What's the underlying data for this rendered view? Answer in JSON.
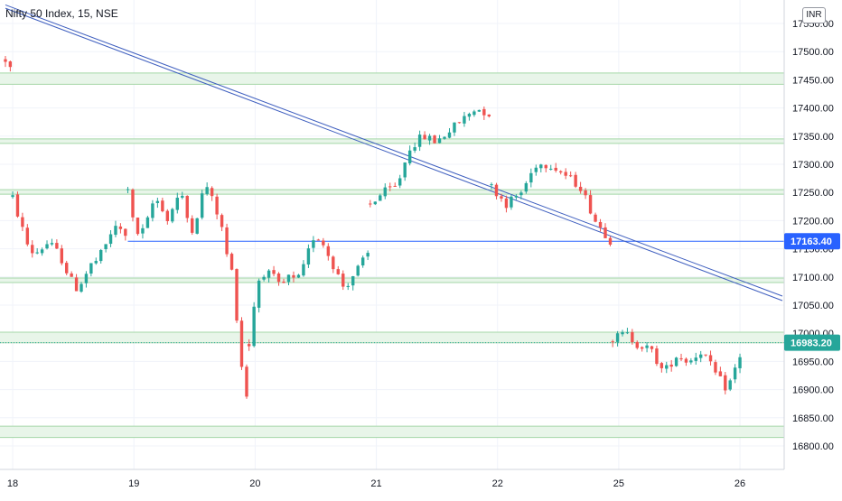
{
  "chart_data": {
    "type": "candlestick",
    "title": "Nifty 50 Index, 15, NSE",
    "currency": "INR",
    "y_ticks": [
      16800,
      16850,
      16900,
      16950,
      17000,
      17050,
      17100,
      17150,
      17200,
      17250,
      17300,
      17350,
      17400,
      17450,
      17500,
      17550
    ],
    "ylim": [
      16775,
      17575
    ],
    "x_labels": [
      {
        "label": "18",
        "day": 0
      },
      {
        "label": "19",
        "day": 1
      },
      {
        "label": "20",
        "day": 2
      },
      {
        "label": "21",
        "day": 3
      },
      {
        "label": "22",
        "day": 4
      },
      {
        "label": "25",
        "day": 5
      },
      {
        "label": "26",
        "day": 6
      }
    ],
    "xlim": [
      -0.06,
      6.35
    ],
    "grid": true,
    "support_resistance_zones": [
      [
        17442,
        17462
      ],
      [
        17337,
        17345
      ],
      [
        17247,
        17255
      ],
      [
        17090,
        17098
      ],
      [
        16983,
        17002
      ],
      [
        16815,
        16835
      ]
    ],
    "trendlines": [
      {
        "x": [
          -0.06,
          6.35
        ],
        "y": [
          17583,
          17066
        ]
      },
      {
        "x": [
          -0.06,
          6.35
        ],
        "y": [
          17577,
          17058
        ]
      }
    ],
    "horizontal_level": {
      "price": 17163.4,
      "from_day": 0.95,
      "label": "17163.40",
      "color": "#2962ff"
    },
    "last_price": {
      "price": 16983.2,
      "label": "16983.20",
      "color": "#26a69a"
    },
    "colors": {
      "up": "#26a69a",
      "down": "#ef5350",
      "zone_fill": "#e8f5e9",
      "zone_line": "#a5d6a7",
      "trendline": "#3f5fbf"
    },
    "segments": [
      {
        "start_day": -0.06,
        "end_day": -0.02,
        "path": [
          17485,
          17475,
          17470
        ]
      },
      {
        "start_day": 0.0,
        "end_day": 0.93,
        "path": [
          17240,
          17200,
          17160,
          17140,
          17150,
          17160,
          17150,
          17130,
          17100,
          17080,
          17095,
          17120,
          17130,
          17150,
          17180,
          17190,
          17170
        ]
      },
      {
        "start_day": 0.95,
        "end_day": 1.93,
        "path": [
          17260,
          17180,
          17175,
          17200,
          17240,
          17230,
          17200,
          17230,
          17250,
          17205,
          17180,
          17240,
          17260,
          17230,
          17200,
          17140,
          17100,
          16960,
          16890
        ]
      },
      {
        "start_day": 1.95,
        "end_day": 2.93,
        "path": [
          16980,
          17090,
          17110,
          17100,
          17080,
          17100,
          17090,
          17120,
          17170,
          17170,
          17140,
          17110,
          17080,
          17100,
          17120,
          17140
        ]
      },
      {
        "start_day": 2.95,
        "end_day": 3.93,
        "path": [
          17230,
          17250,
          17260,
          17330,
          17350,
          17340,
          17360,
          17380,
          17400,
          17390
        ]
      },
      {
        "start_day": 3.95,
        "end_day": 4.93,
        "path": [
          17260,
          17230,
          17250,
          17300,
          17300,
          17280,
          17260,
          17200,
          17165
        ]
      },
      {
        "start_day": 4.95,
        "end_day": 6.0,
        "path": [
          16990,
          17000,
          16980,
          16970,
          16930,
          16960,
          16950,
          16970,
          16930,
          16900,
          16960
        ]
      }
    ]
  }
}
